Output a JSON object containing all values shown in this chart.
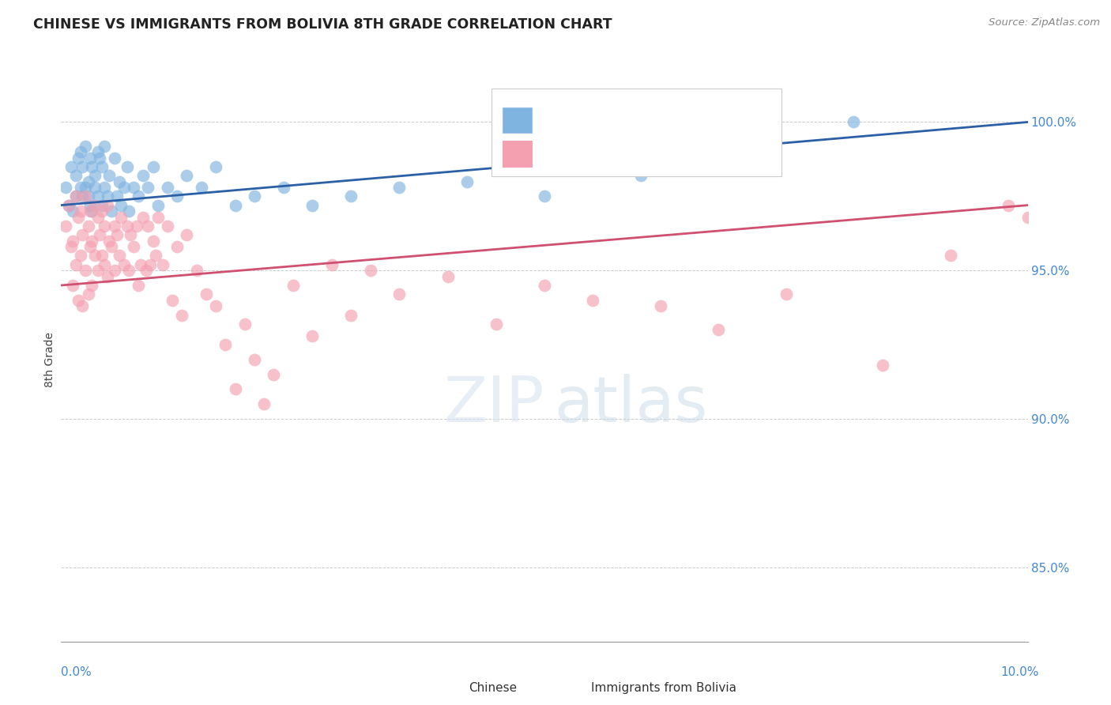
{
  "title": "CHINESE VS IMMIGRANTS FROM BOLIVIA 8TH GRADE CORRELATION CHART",
  "source_text": "Source: ZipAtlas.com",
  "ylabel": "8th Grade",
  "xmin": 0.0,
  "xmax": 10.0,
  "ymin": 82.5,
  "ymax": 101.5,
  "yticks": [
    85.0,
    90.0,
    95.0,
    100.0
  ],
  "ytick_labels": [
    "85.0%",
    "90.0%",
    "95.0%",
    "100.0%"
  ],
  "blue_color": "#7FB3E0",
  "pink_color": "#F4A0B0",
  "trend_blue": "#2B5FA6",
  "trend_pink": "#D05070",
  "blue_scatter_x": [
    0.05,
    0.08,
    0.1,
    0.12,
    0.15,
    0.15,
    0.18,
    0.2,
    0.2,
    0.22,
    0.22,
    0.25,
    0.25,
    0.28,
    0.28,
    0.3,
    0.3,
    0.32,
    0.32,
    0.35,
    0.35,
    0.38,
    0.38,
    0.4,
    0.42,
    0.42,
    0.45,
    0.45,
    0.48,
    0.5,
    0.52,
    0.55,
    0.58,
    0.6,
    0.62,
    0.65,
    0.68,
    0.7,
    0.75,
    0.8,
    0.85,
    0.9,
    0.95,
    1.0,
    1.1,
    1.2,
    1.3,
    1.45,
    1.6,
    1.8,
    2.0,
    2.3,
    2.6,
    3.0,
    3.5,
    4.2,
    5.0,
    6.0,
    8.2
  ],
  "blue_scatter_y": [
    97.8,
    97.2,
    98.5,
    97.0,
    98.2,
    97.5,
    98.8,
    97.8,
    99.0,
    97.5,
    98.5,
    97.8,
    99.2,
    98.0,
    97.5,
    98.8,
    97.2,
    98.5,
    97.0,
    98.2,
    97.8,
    99.0,
    97.5,
    98.8,
    97.2,
    98.5,
    99.2,
    97.8,
    97.5,
    98.2,
    97.0,
    98.8,
    97.5,
    98.0,
    97.2,
    97.8,
    98.5,
    97.0,
    97.8,
    97.5,
    98.2,
    97.8,
    98.5,
    97.2,
    97.8,
    97.5,
    98.2,
    97.8,
    98.5,
    97.2,
    97.5,
    97.8,
    97.2,
    97.5,
    97.8,
    98.0,
    97.5,
    98.2,
    100.0
  ],
  "pink_scatter_x": [
    0.05,
    0.08,
    0.1,
    0.12,
    0.12,
    0.15,
    0.15,
    0.18,
    0.18,
    0.2,
    0.2,
    0.22,
    0.22,
    0.25,
    0.25,
    0.28,
    0.28,
    0.3,
    0.3,
    0.32,
    0.32,
    0.35,
    0.35,
    0.38,
    0.38,
    0.4,
    0.42,
    0.42,
    0.45,
    0.45,
    0.48,
    0.48,
    0.5,
    0.52,
    0.55,
    0.55,
    0.58,
    0.6,
    0.62,
    0.65,
    0.68,
    0.7,
    0.72,
    0.75,
    0.78,
    0.8,
    0.82,
    0.85,
    0.88,
    0.9,
    0.92,
    0.95,
    0.98,
    1.0,
    1.05,
    1.1,
    1.15,
    1.2,
    1.25,
    1.3,
    1.4,
    1.5,
    1.6,
    1.7,
    1.8,
    1.9,
    2.0,
    2.1,
    2.2,
    2.4,
    2.6,
    2.8,
    3.0,
    3.2,
    3.5,
    4.0,
    4.5,
    5.0,
    5.5,
    6.2,
    6.8,
    7.5,
    8.5,
    9.2,
    9.8,
    10.0
  ],
  "pink_scatter_y": [
    96.5,
    97.2,
    95.8,
    96.0,
    94.5,
    97.5,
    95.2,
    96.8,
    94.0,
    97.0,
    95.5,
    96.2,
    93.8,
    97.5,
    95.0,
    96.5,
    94.2,
    97.0,
    95.8,
    96.0,
    94.5,
    95.5,
    97.2,
    96.8,
    95.0,
    96.2,
    95.5,
    97.0,
    96.5,
    95.2,
    97.2,
    94.8,
    96.0,
    95.8,
    96.5,
    95.0,
    96.2,
    95.5,
    96.8,
    95.2,
    96.5,
    95.0,
    96.2,
    95.8,
    96.5,
    94.5,
    95.2,
    96.8,
    95.0,
    96.5,
    95.2,
    96.0,
    95.5,
    96.8,
    95.2,
    96.5,
    94.0,
    95.8,
    93.5,
    96.2,
    95.0,
    94.2,
    93.8,
    92.5,
    91.0,
    93.2,
    92.0,
    90.5,
    91.5,
    94.5,
    92.8,
    95.2,
    93.5,
    95.0,
    94.2,
    94.8,
    93.2,
    94.5,
    94.0,
    93.8,
    93.0,
    94.2,
    91.8,
    95.5,
    97.2,
    96.8
  ]
}
